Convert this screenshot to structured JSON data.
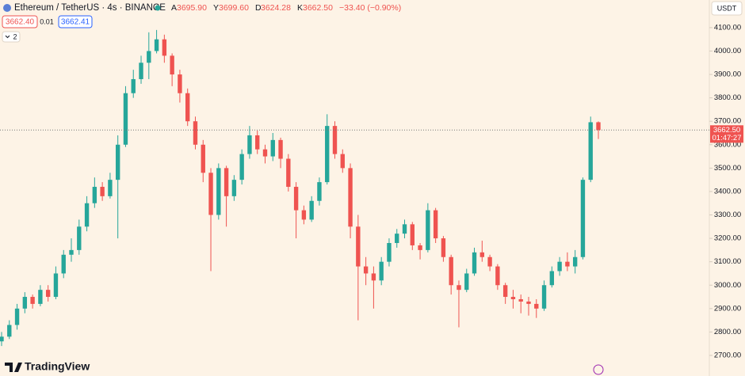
{
  "chart_data": {
    "type": "candlestick",
    "title": "Ethereum / TetherUS · 4s · BINANCE",
    "ohlc_labels": [
      {
        "label": "A",
        "value": "3695.90"
      },
      {
        "label": "Y",
        "value": "3699.60"
      },
      {
        "label": "D",
        "value": "3624.28"
      },
      {
        "label": "K",
        "value": "3662.50"
      }
    ],
    "change": "−33.40 (−0.90%)",
    "bid": "3662.40",
    "spread": "0.01",
    "ask": "3662.41",
    "indicator_count": "2",
    "currency": "USDT",
    "countdown": "01:47:27",
    "brand": "TradingView",
    "last_price": {
      "value": 3662.5,
      "label": "3662.50"
    },
    "up_color": "#26a69a",
    "down_color": "#ef5350",
    "ylim": [
      2612,
      4218
    ],
    "yticks": [
      {
        "value": 2700,
        "label": "2700.00"
      },
      {
        "value": 2800,
        "label": "2800.00"
      },
      {
        "value": 2900,
        "label": "2900.00"
      },
      {
        "value": 3000,
        "label": "3000.00"
      },
      {
        "value": 3100,
        "label": "3100.00"
      },
      {
        "value": 3200,
        "label": "3200.00"
      },
      {
        "value": 3300,
        "label": "3300.00"
      },
      {
        "value": 3400,
        "label": "3400.00"
      },
      {
        "value": 3500,
        "label": "3500.00"
      },
      {
        "value": 3600,
        "label": "3600.00"
      },
      {
        "value": 3700,
        "label": "3700.00"
      },
      {
        "value": 3800,
        "label": "3800.00"
      },
      {
        "value": 3900,
        "label": "3900.00"
      },
      {
        "value": 4000,
        "label": "4000.00"
      },
      {
        "value": 4100,
        "label": "4100.00"
      }
    ],
    "open": [
      2760,
      2780,
      2830,
      2900,
      2950,
      2920,
      2980,
      2950,
      3050,
      3130,
      3150,
      3250,
      3350,
      3420,
      3380,
      3450,
      3600,
      3820,
      3880,
      3950,
      4000,
      4050,
      3980,
      3900,
      3820,
      3700,
      3600,
      3480,
      3300,
      3500,
      3380,
      3450,
      3560,
      3640,
      3580,
      3550,
      3620,
      3540,
      3420,
      3320,
      3280,
      3360,
      3440,
      3680,
      3560,
      3500,
      3250,
      3080,
      3050,
      3020,
      3100,
      3180,
      3220,
      3260,
      3170,
      3150,
      3320,
      3200,
      3120,
      3000,
      2980,
      3050,
      3140,
      3120,
      3080,
      3000,
      2950,
      2940,
      2930,
      2920,
      2900,
      3000,
      3060,
      3100,
      3080,
      3120,
      3450,
      3695.9
    ],
    "high": [
      2800,
      2850,
      2920,
      2970,
      2960,
      3000,
      3000,
      3080,
      3150,
      3200,
      3280,
      3380,
      3460,
      3440,
      3480,
      3640,
      3850,
      3920,
      3980,
      4080,
      4090,
      4070,
      3990,
      3920,
      3840,
      3720,
      3620,
      3500,
      3520,
      3510,
      3470,
      3580,
      3680,
      3660,
      3600,
      3650,
      3630,
      3560,
      3440,
      3340,
      3380,
      3460,
      3730,
      3700,
      3580,
      3520,
      3300,
      3120,
      3080,
      3120,
      3200,
      3240,
      3280,
      3270,
      3180,
      3350,
      3330,
      3210,
      3130,
      3020,
      3070,
      3160,
      3190,
      3130,
      3090,
      3010,
      2980,
      2960,
      2950,
      2940,
      3020,
      3080,
      3120,
      3140,
      3150,
      3460,
      3720,
      3699.6
    ],
    "low": [
      2740,
      2770,
      2810,
      2880,
      2900,
      2910,
      2930,
      2940,
      3030,
      3100,
      3130,
      3230,
      3330,
      3360,
      3370,
      3200,
      3590,
      3800,
      3860,
      3880,
      3990,
      3950,
      3850,
      3780,
      3680,
      3580,
      3440,
      3060,
      3280,
      3250,
      3360,
      3430,
      3540,
      3560,
      3520,
      3530,
      3500,
      3400,
      3200,
      3260,
      3270,
      3340,
      3430,
      3540,
      3480,
      3200,
      2850,
      3000,
      2900,
      3000,
      3080,
      3160,
      3200,
      3150,
      3110,
      3140,
      3180,
      3100,
      2960,
      2820,
      2970,
      3040,
      3100,
      3060,
      2980,
      2920,
      2900,
      2880,
      2870,
      2860,
      2890,
      2990,
      3040,
      3060,
      3050,
      3110,
      3440,
      3624.28
    ],
    "close": [
      2780,
      2830,
      2900,
      2950,
      2920,
      2980,
      2950,
      3050,
      3130,
      3150,
      3250,
      3350,
      3420,
      3380,
      3450,
      3600,
      3820,
      3880,
      3950,
      4000,
      4050,
      3980,
      3900,
      3820,
      3700,
      3600,
      3480,
      3300,
      3500,
      3380,
      3450,
      3560,
      3640,
      3580,
      3550,
      3620,
      3540,
      3420,
      3320,
      3280,
      3360,
      3440,
      3680,
      3560,
      3500,
      3250,
      3080,
      3050,
      3020,
      3100,
      3180,
      3220,
      3260,
      3170,
      3150,
      3320,
      3200,
      3120,
      3000,
      2980,
      3050,
      3140,
      3120,
      3080,
      3000,
      2950,
      2940,
      2930,
      2920,
      2900,
      3000,
      3060,
      3100,
      3080,
      3120,
      3450,
      3695.9,
      3662.5
    ]
  }
}
